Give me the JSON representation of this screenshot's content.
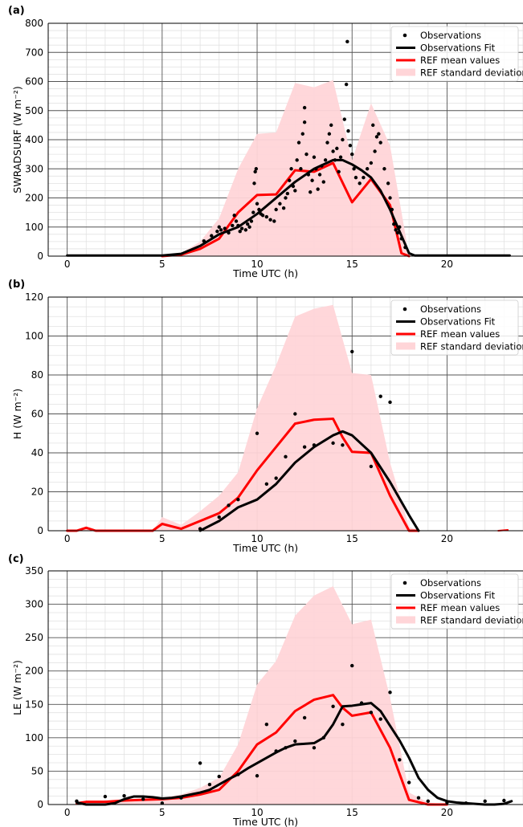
{
  "colors": {
    "observations": "#000000",
    "fit": "#000000",
    "ref_mean": "#ff0000",
    "ref_std": "#ffd5d8",
    "grid_major": "#555555",
    "grid_minor": "#e2e2e2"
  },
  "legend": {
    "observations": "Observations",
    "fit": "Observations Fit",
    "ref_mean": "REF mean values",
    "ref_std": "REF standard deviation"
  },
  "chart_data": [
    {
      "panel": "(a)",
      "type": "scatter",
      "xlabel": "Time UTC (h)",
      "ylabel": "SWRADSURF (W m⁻²)",
      "xlim": [
        -1,
        24
      ],
      "ylim": [
        0,
        800
      ],
      "xticks": [
        0,
        5,
        10,
        15,
        20
      ],
      "yticks": [
        0,
        100,
        200,
        300,
        400,
        500,
        600,
        700,
        800
      ],
      "grid": true,
      "legend_position": "top-right",
      "ref_std": [
        [
          0,
          0
        ],
        [
          5,
          0
        ],
        [
          6,
          10
        ],
        [
          7,
          50
        ],
        [
          8,
          130
        ],
        [
          9,
          300
        ],
        [
          10,
          420
        ],
        [
          11,
          425
        ],
        [
          12,
          595
        ],
        [
          13,
          580
        ],
        [
          14,
          605
        ],
        [
          15,
          330
        ],
        [
          16,
          525
        ],
        [
          17,
          380
        ],
        [
          18,
          0
        ]
      ],
      "ref_mean": [
        [
          5,
          0
        ],
        [
          6,
          5
        ],
        [
          7,
          25
        ],
        [
          8,
          60
        ],
        [
          9,
          150
        ],
        [
          10,
          210
        ],
        [
          11,
          212
        ],
        [
          12,
          295
        ],
        [
          13,
          290
        ],
        [
          14,
          320
        ],
        [
          15,
          185
        ],
        [
          16,
          265
        ],
        [
          17,
          175
        ],
        [
          17.6,
          10
        ],
        [
          18,
          0
        ]
      ],
      "fit": [
        [
          0,
          2
        ],
        [
          5,
          2
        ],
        [
          6,
          8
        ],
        [
          7,
          35
        ],
        [
          8,
          75
        ],
        [
          9,
          100
        ],
        [
          10,
          145
        ],
        [
          11,
          200
        ],
        [
          12,
          255
        ],
        [
          13,
          300
        ],
        [
          14,
          330
        ],
        [
          14.5,
          330
        ],
        [
          15,
          315
        ],
        [
          15.5,
          295
        ],
        [
          16,
          270
        ],
        [
          16.5,
          225
        ],
        [
          17,
          160
        ],
        [
          17.5,
          85
        ],
        [
          18,
          10
        ],
        [
          18.3,
          2
        ],
        [
          23.3,
          2
        ]
      ],
      "observations": [
        [
          7.2,
          52
        ],
        [
          7.6,
          70
        ],
        [
          7.9,
          85
        ],
        [
          8.0,
          100
        ],
        [
          8.1,
          90
        ],
        [
          8.3,
          95
        ],
        [
          8.5,
          80
        ],
        [
          8.7,
          105
        ],
        [
          8.8,
          140
        ],
        [
          8.9,
          120
        ],
        [
          9.0,
          105
        ],
        [
          9.1,
          85
        ],
        [
          9.2,
          95
        ],
        [
          9.4,
          90
        ],
        [
          9.5,
          110
        ],
        [
          9.6,
          100
        ],
        [
          9.7,
          120
        ],
        [
          9.8,
          150
        ],
        [
          9.85,
          250
        ],
        [
          9.9,
          290
        ],
        [
          9.95,
          300
        ],
        [
          10.0,
          180
        ],
        [
          10.1,
          160
        ],
        [
          10.2,
          145
        ],
        [
          10.3,
          140
        ],
        [
          10.5,
          135
        ],
        [
          10.7,
          125
        ],
        [
          10.9,
          120
        ],
        [
          11.0,
          160
        ],
        [
          11.2,
          180
        ],
        [
          11.4,
          165
        ],
        [
          11.5,
          200
        ],
        [
          11.6,
          215
        ],
        [
          11.7,
          260
        ],
        [
          11.8,
          300
        ],
        [
          11.9,
          240
        ],
        [
          12.0,
          225
        ],
        [
          12.1,
          330
        ],
        [
          12.2,
          390
        ],
        [
          12.3,
          300
        ],
        [
          12.4,
          420
        ],
        [
          12.5,
          460
        ],
        [
          12.5,
          510
        ],
        [
          12.6,
          350
        ],
        [
          12.7,
          280
        ],
        [
          12.8,
          220
        ],
        [
          12.9,
          260
        ],
        [
          13.0,
          340
        ],
        [
          13.1,
          300
        ],
        [
          13.2,
          230
        ],
        [
          13.3,
          280
        ],
        [
          13.4,
          310
        ],
        [
          13.5,
          255
        ],
        [
          13.6,
          330
        ],
        [
          13.7,
          390
        ],
        [
          13.8,
          420
        ],
        [
          13.9,
          450
        ],
        [
          14.0,
          360
        ],
        [
          14.1,
          330
        ],
        [
          14.2,
          370
        ],
        [
          14.3,
          290
        ],
        [
          14.4,
          340
        ],
        [
          14.5,
          400
        ],
        [
          14.6,
          470
        ],
        [
          14.7,
          590
        ],
        [
          14.75,
          737
        ],
        [
          14.8,
          430
        ],
        [
          14.9,
          380
        ],
        [
          15.0,
          350
        ],
        [
          15.1,
          300
        ],
        [
          15.2,
          270
        ],
        [
          15.4,
          250
        ],
        [
          15.6,
          270
        ],
        [
          15.8,
          300
        ],
        [
          16.0,
          320
        ],
        [
          16.1,
          450
        ],
        [
          16.2,
          360
        ],
        [
          16.3,
          410
        ],
        [
          16.4,
          420
        ],
        [
          16.5,
          390
        ],
        [
          16.7,
          300
        ],
        [
          16.9,
          250
        ],
        [
          17.0,
          200
        ],
        [
          17.1,
          160
        ],
        [
          17.2,
          110
        ],
        [
          17.3,
          90
        ],
        [
          17.4,
          80
        ],
        [
          17.5,
          100
        ],
        [
          17.6,
          60
        ],
        [
          17.8,
          30
        ]
      ]
    },
    {
      "panel": "(b)",
      "type": "scatter",
      "xlabel": "Time UTC (h)",
      "ylabel": "H (W m⁻²)",
      "xlim": [
        -1,
        24
      ],
      "ylim": [
        0,
        120
      ],
      "xticks": [
        0,
        5,
        10,
        15,
        20
      ],
      "yticks": [
        0,
        20,
        40,
        60,
        80,
        100,
        120
      ],
      "grid": true,
      "legend_position": "top-right",
      "ref_std": [
        [
          0,
          0
        ],
        [
          0.5,
          0
        ],
        [
          1,
          2
        ],
        [
          1.5,
          0
        ],
        [
          4.5,
          0
        ],
        [
          5,
          7
        ],
        [
          6,
          3
        ],
        [
          7,
          10
        ],
        [
          8,
          18
        ],
        [
          9,
          30
        ],
        [
          10,
          63
        ],
        [
          11,
          85
        ],
        [
          12,
          110
        ],
        [
          13,
          114
        ],
        [
          14,
          116
        ],
        [
          15,
          81
        ],
        [
          16,
          80
        ],
        [
          17,
          35
        ],
        [
          18,
          2
        ],
        [
          18.5,
          0
        ]
      ],
      "ref_mean": [
        [
          0,
          0
        ],
        [
          0.5,
          0
        ],
        [
          1,
          1.5
        ],
        [
          1.5,
          0
        ],
        [
          4.5,
          0
        ],
        [
          5,
          3.5
        ],
        [
          6,
          1
        ],
        [
          7,
          5
        ],
        [
          8,
          9
        ],
        [
          9,
          17
        ],
        [
          10,
          31
        ],
        [
          11,
          43
        ],
        [
          12,
          55
        ],
        [
          13,
          57
        ],
        [
          14,
          57.5
        ],
        [
          14.5,
          48
        ],
        [
          15,
          40.5
        ],
        [
          16,
          40
        ],
        [
          17,
          18
        ],
        [
          18,
          0
        ],
        [
          18.5,
          0
        ]
      ],
      "ref_mean_tail": [
        [
          22.7,
          0
        ],
        [
          23.2,
          0.4
        ]
      ],
      "fit": [
        [
          7,
          0
        ],
        [
          8,
          5
        ],
        [
          9,
          12
        ],
        [
          10,
          16
        ],
        [
          11,
          24
        ],
        [
          12,
          35
        ],
        [
          13,
          43
        ],
        [
          14,
          49
        ],
        [
          14.5,
          51
        ],
        [
          15,
          49
        ],
        [
          16,
          40
        ],
        [
          17,
          25
        ],
        [
          18,
          8
        ],
        [
          18.5,
          0
        ]
      ],
      "observations": [
        [
          7,
          1
        ],
        [
          8,
          7
        ],
        [
          8.5,
          13
        ],
        [
          9,
          16
        ],
        [
          10,
          50
        ],
        [
          10.5,
          24
        ],
        [
          11,
          27
        ],
        [
          11.5,
          38
        ],
        [
          12,
          60
        ],
        [
          12.5,
          43
        ],
        [
          13,
          44
        ],
        [
          14,
          45
        ],
        [
          14.5,
          44
        ],
        [
          15,
          92
        ],
        [
          16,
          33
        ],
        [
          16.5,
          69
        ],
        [
          17,
          66
        ]
      ]
    },
    {
      "panel": "(c)",
      "type": "scatter",
      "xlabel": "Time UTC (h)",
      "ylabel": "LE (W m⁻²)",
      "xlim": [
        -1,
        24
      ],
      "ylim": [
        0,
        350
      ],
      "xticks": [
        0,
        5,
        10,
        15,
        20
      ],
      "yticks": [
        0,
        50,
        100,
        150,
        200,
        250,
        300,
        350
      ],
      "grid": true,
      "legend_position": "top-right",
      "ref_std": [
        [
          0.5,
          2
        ],
        [
          2,
          5
        ],
        [
          3,
          7
        ],
        [
          4,
          8
        ],
        [
          5,
          10
        ],
        [
          6,
          15
        ],
        [
          7,
          25
        ],
        [
          8,
          40
        ],
        [
          9,
          90
        ],
        [
          10,
          180
        ],
        [
          11,
          215
        ],
        [
          12,
          283
        ],
        [
          13,
          313
        ],
        [
          14,
          327
        ],
        [
          15,
          270
        ],
        [
          16,
          277
        ],
        [
          17,
          160
        ],
        [
          18,
          18
        ],
        [
          19,
          3
        ],
        [
          20,
          0
        ]
      ],
      "ref_mean": [
        [
          0.5,
          2
        ],
        [
          1,
          4
        ],
        [
          2,
          4
        ],
        [
          3,
          6
        ],
        [
          4,
          7
        ],
        [
          5,
          8
        ],
        [
          6,
          10
        ],
        [
          7,
          15
        ],
        [
          8,
          22
        ],
        [
          9,
          50
        ],
        [
          10,
          90
        ],
        [
          11,
          108
        ],
        [
          12,
          140
        ],
        [
          13,
          157
        ],
        [
          14,
          164
        ],
        [
          14.5,
          145
        ],
        [
          15,
          133
        ],
        [
          16,
          138
        ],
        [
          17,
          85
        ],
        [
          18,
          7
        ],
        [
          19,
          0
        ],
        [
          20,
          0
        ]
      ],
      "fit": [
        [
          0.5,
          3
        ],
        [
          1,
          0
        ],
        [
          2,
          0
        ],
        [
          2.5,
          2
        ],
        [
          3,
          8
        ],
        [
          3.5,
          12
        ],
        [
          4,
          12
        ],
        [
          4.5,
          11
        ],
        [
          5,
          9
        ],
        [
          5.5,
          10
        ],
        [
          6,
          12
        ],
        [
          6.5,
          15
        ],
        [
          7,
          18
        ],
        [
          7.5,
          22
        ],
        [
          8,
          30
        ],
        [
          8.5,
          38
        ],
        [
          9,
          45
        ],
        [
          9.5,
          54
        ],
        [
          10,
          62
        ],
        [
          10.5,
          70
        ],
        [
          11,
          78
        ],
        [
          11.5,
          85
        ],
        [
          12,
          90
        ],
        [
          12.5,
          91
        ],
        [
          13,
          92
        ],
        [
          13.5,
          100
        ],
        [
          14,
          120
        ],
        [
          14.5,
          147
        ],
        [
          15,
          148
        ],
        [
          15.5,
          150
        ],
        [
          16,
          152
        ],
        [
          16.5,
          140
        ],
        [
          17,
          118
        ],
        [
          17.5,
          96
        ],
        [
          18,
          70
        ],
        [
          18.5,
          40
        ],
        [
          19,
          22
        ],
        [
          19.5,
          10
        ],
        [
          20,
          5
        ],
        [
          20.5,
          3
        ],
        [
          21,
          2
        ],
        [
          22,
          0
        ],
        [
          22.5,
          0
        ],
        [
          23,
          1
        ],
        [
          23.4,
          5
        ]
      ],
      "observations": [
        [
          0.5,
          5
        ],
        [
          2,
          12
        ],
        [
          3,
          13
        ],
        [
          4,
          8
        ],
        [
          5,
          2
        ],
        [
          6,
          10
        ],
        [
          7,
          62
        ],
        [
          7.5,
          30
        ],
        [
          8,
          42
        ],
        [
          9,
          45
        ],
        [
          10,
          43
        ],
        [
          10.5,
          120
        ],
        [
          11,
          80
        ],
        [
          11.5,
          85
        ],
        [
          12,
          95
        ],
        [
          12.5,
          130
        ],
        [
          13,
          85
        ],
        [
          13.5,
          100
        ],
        [
          14,
          147
        ],
        [
          14.5,
          120
        ],
        [
          15,
          208
        ],
        [
          15.5,
          152
        ],
        [
          16,
          138
        ],
        [
          16.5,
          128
        ],
        [
          17,
          168
        ],
        [
          17.5,
          67
        ],
        [
          18,
          33
        ],
        [
          18.5,
          10
        ],
        [
          19,
          5
        ],
        [
          20,
          3
        ],
        [
          21,
          2
        ],
        [
          22,
          5
        ],
        [
          23,
          6
        ]
      ]
    }
  ]
}
